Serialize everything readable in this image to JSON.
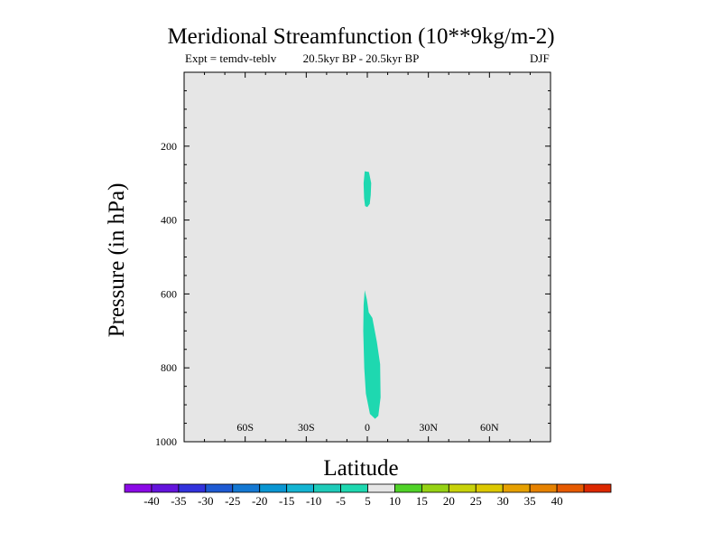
{
  "chart_data": {
    "type": "contour",
    "title": "Meridional Streamfunction (10**9kg/m-2)",
    "subtitle_left": "Expt = temdv-teblv",
    "subtitle_center": "20.5kyr BP - 20.5kyr BP",
    "subtitle_right": "DJF",
    "xlabel": "Latitude",
    "ylabel": "Pressure (in hPa)",
    "xlim": [
      -90,
      90
    ],
    "ylim": [
      1000,
      0
    ],
    "x_ticks": [
      {
        "value": -60,
        "label": "60S"
      },
      {
        "value": -30,
        "label": "30S"
      },
      {
        "value": 0,
        "label": "0"
      },
      {
        "value": 30,
        "label": "30N"
      },
      {
        "value": 60,
        "label": "60N"
      }
    ],
    "y_ticks": [
      {
        "value": 200,
        "label": "200"
      },
      {
        "value": 400,
        "label": "400"
      },
      {
        "value": 600,
        "label": "600"
      },
      {
        "value": 800,
        "label": "800"
      },
      {
        "value": 1000,
        "label": "1000"
      }
    ],
    "background_color": "#e6e6e6",
    "regions": [
      {
        "name": "upper-negative-region",
        "level": "-10 to -5",
        "color": "#1ed8b0",
        "outline": [
          [
            -1.3,
            268
          ],
          [
            0.8,
            270
          ],
          [
            1.9,
            300
          ],
          [
            1.7,
            332
          ],
          [
            1.2,
            356
          ],
          [
            0.0,
            365
          ],
          [
            -1.1,
            362
          ],
          [
            -1.6,
            340
          ],
          [
            -1.8,
            300
          ]
        ]
      },
      {
        "name": "lower-negative-region",
        "level": "-10 to -5",
        "color": "#1ed8b0",
        "outline": [
          [
            -1.3,
            590
          ],
          [
            -0.2,
            615
          ],
          [
            0.7,
            650
          ],
          [
            2.5,
            665
          ],
          [
            4.7,
            730
          ],
          [
            6.3,
            790
          ],
          [
            6.5,
            880
          ],
          [
            5.4,
            930
          ],
          [
            3.8,
            938
          ],
          [
            1.3,
            925
          ],
          [
            -0.7,
            870
          ],
          [
            -1.5,
            800
          ],
          [
            -2.0,
            700
          ],
          [
            -1.8,
            630
          ]
        ]
      }
    ],
    "colorbar": {
      "labels": [
        "-40",
        "-35",
        "-30",
        "-25",
        "-20",
        "-15",
        "-10",
        "-5",
        "5",
        "10",
        "15",
        "20",
        "25",
        "30",
        "35",
        "40"
      ],
      "colors": [
        "#8b0ae6",
        "#6414dc",
        "#3232dc",
        "#1e5ad2",
        "#1478d2",
        "#0a96d2",
        "#14b4d2",
        "#1ecbb9",
        "#1ed8b0",
        "#e6e6e6",
        "#50d228",
        "#96d214",
        "#c8d20a",
        "#dcc800",
        "#e6a000",
        "#e68200",
        "#e65a00",
        "#dc2800"
      ]
    }
  }
}
